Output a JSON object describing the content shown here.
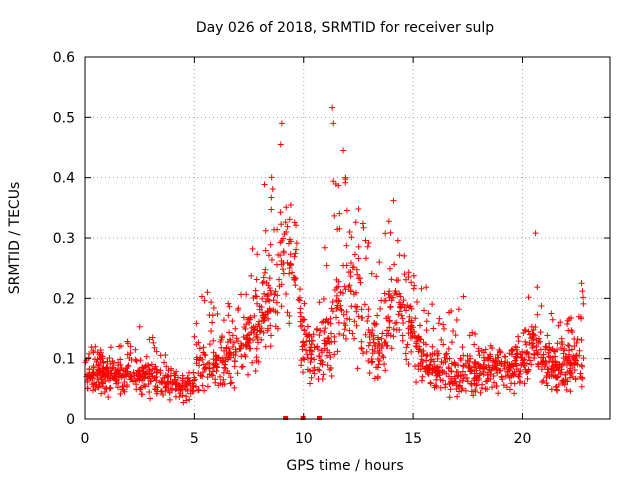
{
  "chart_data": {
    "type": "scatter",
    "title": "Day 026 of 2018, SRMTID for receiver sulp",
    "xlabel": "GPS time / hours",
    "ylabel": "SRMTID / TECUs",
    "xlim": [
      0,
      24
    ],
    "ylim": [
      0,
      0.6
    ],
    "xticks": [
      0,
      5,
      10,
      15,
      20
    ],
    "xtick_labels": [
      "0",
      "5",
      "10",
      "15",
      "20"
    ],
    "yticks": [
      0,
      0.1,
      0.2,
      0.3,
      0.4,
      0.5,
      0.6
    ],
    "ytick_labels": [
      "0",
      "0.1",
      "0.2",
      "0.3",
      "0.4",
      "0.5",
      "0.6"
    ],
    "grid": true,
    "marker": "+",
    "series_color": "#ff0000",
    "data_extent_hours": [
      0,
      22.8
    ],
    "envelope": {
      "description_hours_vs_typical_and_peak": "profile used to describe point cloud",
      "x": [
        0,
        1,
        2,
        3,
        4,
        4.8,
        5.2,
        6,
        7,
        8,
        8.5,
        8.9,
        9.3,
        9.7,
        10.0,
        10.5,
        11.2,
        11.5,
        12.0,
        12.5,
        13.0,
        13.5,
        14.0,
        14.3,
        14.8,
        15.5,
        16.0,
        17.0,
        18.0,
        19.0,
        20.0,
        20.5,
        21.0,
        22.0,
        22.8
      ],
      "base": [
        0.07,
        0.07,
        0.07,
        0.065,
        0.055,
        0.045,
        0.08,
        0.09,
        0.11,
        0.15,
        0.2,
        0.22,
        0.25,
        0.22,
        0.12,
        0.1,
        0.12,
        0.2,
        0.22,
        0.17,
        0.14,
        0.1,
        0.18,
        0.2,
        0.14,
        0.09,
        0.08,
        0.07,
        0.08,
        0.08,
        0.09,
        0.12,
        0.09,
        0.08,
        0.1
      ],
      "peak": [
        0.12,
        0.12,
        0.13,
        0.14,
        0.1,
        0.09,
        0.21,
        0.2,
        0.2,
        0.33,
        0.49,
        0.39,
        0.34,
        0.3,
        0.2,
        0.16,
        0.36,
        0.52,
        0.45,
        0.35,
        0.3,
        0.28,
        0.37,
        0.33,
        0.25,
        0.23,
        0.18,
        0.2,
        0.13,
        0.14,
        0.15,
        0.31,
        0.2,
        0.16,
        0.23
      ]
    },
    "highlight_points": [
      {
        "x": 9.0,
        "y": 0.49
      },
      {
        "x": 8.95,
        "y": 0.455
      },
      {
        "x": 11.3,
        "y": 0.516
      },
      {
        "x": 11.35,
        "y": 0.49
      },
      {
        "x": 11.8,
        "y": 0.445
      },
      {
        "x": 11.9,
        "y": 0.4
      },
      {
        "x": 14.1,
        "y": 0.362
      },
      {
        "x": 20.6,
        "y": 0.308
      },
      {
        "x": 2.5,
        "y": 0.153
      },
      {
        "x": 22.7,
        "y": 0.225
      },
      {
        "x": 17.3,
        "y": 0.203
      },
      {
        "x": 5.6,
        "y": 0.21
      }
    ],
    "gap_markers_hours": [
      9.15,
      9.95,
      10.7
    ]
  }
}
